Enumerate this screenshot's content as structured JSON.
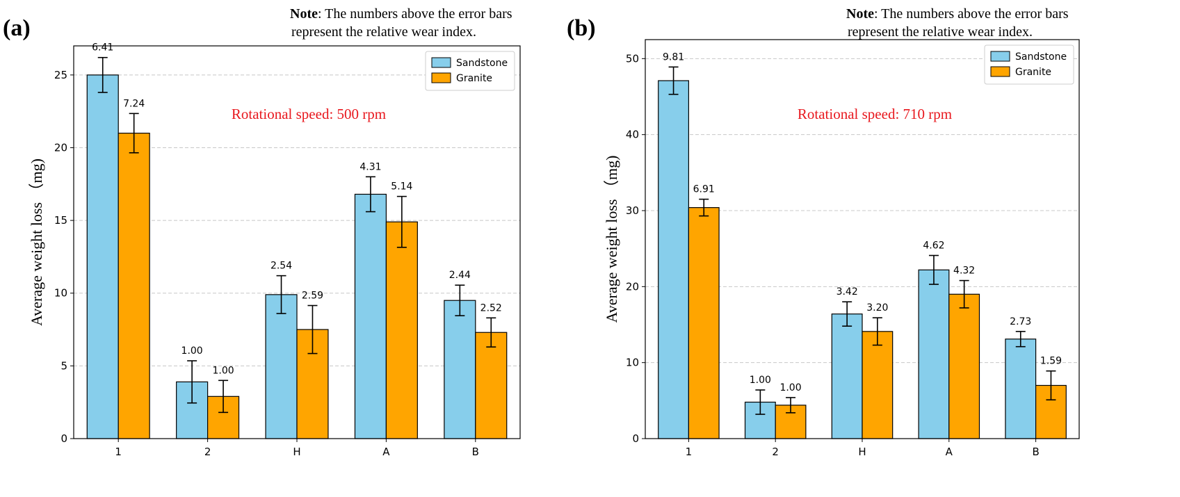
{
  "panels": [
    {
      "label": "(a)",
      "note_bold": "Note",
      "note_line1": ": The numbers above the error bars",
      "note_line2": "represent the relative wear index.",
      "annotation": "Rotational speed: 500 rpm"
    },
    {
      "label": "(b)",
      "note_bold": "Note",
      "note_line1": ": The numbers above the error bars",
      "note_line2": "represent the relative wear index.",
      "annotation": "Rotational speed: 710 rpm"
    }
  ],
  "colors": {
    "sandstone": "#87ceeb",
    "granite": "#ffa500",
    "annotation": "#e8181e"
  },
  "chart_data": [
    {
      "type": "bar",
      "title": "",
      "xlabel": "",
      "ylabel": "Average weight loss （mg)",
      "categories": [
        "1",
        "2",
        "H",
        "A",
        "B"
      ],
      "ylim": [
        0,
        27
      ],
      "yticks": [
        0,
        5,
        10,
        15,
        20,
        25
      ],
      "grid": true,
      "legend": "top-right",
      "series": [
        {
          "name": "Sandstone",
          "values": [
            25.0,
            3.9,
            9.9,
            16.8,
            9.5
          ],
          "errors": [
            1.2,
            1.45,
            1.3,
            1.2,
            1.05
          ],
          "labels": [
            "6.41",
            "1.00",
            "2.54",
            "4.31",
            "2.44"
          ]
        },
        {
          "name": "Granite",
          "values": [
            21.0,
            2.9,
            7.5,
            14.9,
            7.3
          ],
          "errors": [
            1.35,
            1.1,
            1.65,
            1.75,
            1.0
          ],
          "labels": [
            "7.24",
            "1.00",
            "2.59",
            "5.14",
            "2.52"
          ]
        }
      ]
    },
    {
      "type": "bar",
      "title": "",
      "xlabel": "",
      "ylabel": "Average weight loss （mg)",
      "categories": [
        "1",
        "2",
        "H",
        "A",
        "B"
      ],
      "ylim": [
        0,
        52.5
      ],
      "yticks": [
        0,
        10,
        20,
        30,
        40,
        50
      ],
      "grid": true,
      "legend": "top-right",
      "series": [
        {
          "name": "Sandstone",
          "values": [
            47.1,
            4.8,
            16.4,
            22.2,
            13.1
          ],
          "errors": [
            1.8,
            1.6,
            1.6,
            1.9,
            1.0
          ],
          "labels": [
            "9.81",
            "1.00",
            "3.42",
            "4.62",
            "2.73"
          ]
        },
        {
          "name": "Granite",
          "values": [
            30.4,
            4.4,
            14.1,
            19.0,
            7.0
          ],
          "errors": [
            1.1,
            1.0,
            1.8,
            1.8,
            1.9
          ],
          "labels": [
            "6.91",
            "1.00",
            "3.20",
            "4.32",
            "1.59"
          ]
        }
      ]
    }
  ]
}
